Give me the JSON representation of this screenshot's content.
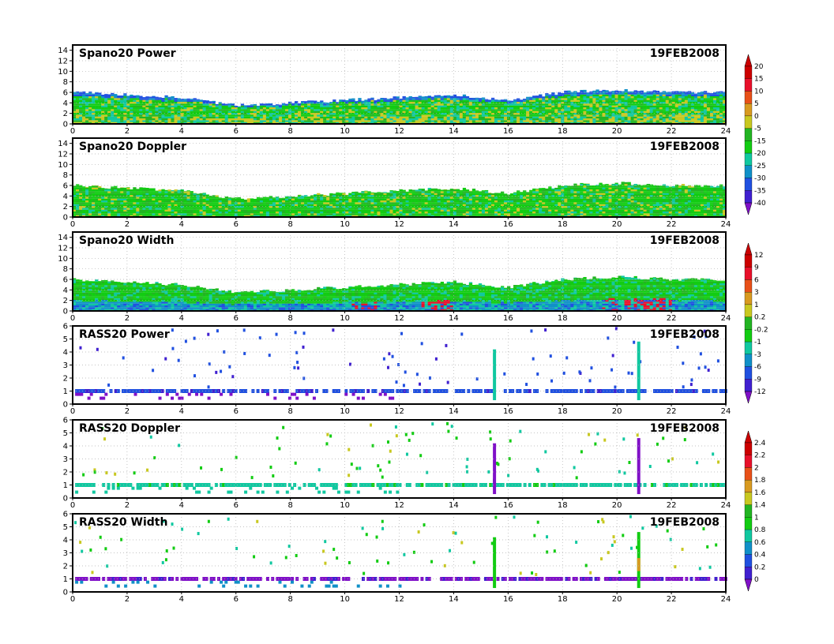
{
  "panels": [
    {
      "title": "Spano20 Power",
      "date": "19FEB2008",
      "kind": "profiler",
      "variable": "power"
    },
    {
      "title": "Spano20 Doppler",
      "date": "19FEB2008",
      "kind": "profiler",
      "variable": "doppler"
    },
    {
      "title": "Spano20 Width",
      "date": "19FEB2008",
      "kind": "profiler",
      "variable": "width"
    },
    {
      "title": "RASS20 Power",
      "date": "19FEB2008",
      "kind": "rass",
      "variable": "power"
    },
    {
      "title": "RASS20 Doppler",
      "date": "19FEB2008",
      "kind": "rass",
      "variable": "doppler"
    },
    {
      "title": "RASS20 Width",
      "date": "19FEB2008",
      "kind": "rass",
      "variable": "width"
    }
  ],
  "colorbars": [
    {
      "labels": [
        "20",
        "15",
        "10",
        "5",
        "0",
        "-5",
        "-15",
        "-20",
        "-25",
        "-30",
        "-35",
        "-40"
      ]
    },
    {
      "labels": [
        "12",
        "9",
        "6",
        "3",
        "1",
        "0.2",
        "-0.2",
        "-1",
        "-3",
        "-6",
        "-9",
        "-12"
      ]
    },
    {
      "labels": [
        "2.4",
        "2.2",
        "2",
        "1.8",
        "1.6",
        "1.4",
        "1",
        "0.8",
        "0.6",
        "0.4",
        "0.2",
        "0"
      ]
    }
  ],
  "colors": {
    "palette": [
      "#cc0000",
      "#e8102a",
      "#e85018",
      "#d89a20",
      "#c8c820",
      "#22b422",
      "#12cc12",
      "#10c8a0",
      "#1090c8",
      "#2050e0",
      "#4020d0",
      "#8010c8"
    ],
    "grid": "#b0b0b0",
    "frame": "#000000"
  },
  "chart_data": [
    {
      "type": "heatmap",
      "title": "Spano20 Power",
      "annotation": "19FEB2008",
      "x": [
        0,
        2,
        4,
        6,
        8,
        10,
        12,
        14,
        16,
        18,
        20,
        22,
        24
      ],
      "xlim": [
        0,
        24
      ],
      "y_ticks": [
        0,
        2,
        4,
        6,
        8,
        10,
        12,
        14
      ],
      "ylim": [
        0,
        15
      ],
      "echo_top": [
        [
          0,
          6
        ],
        [
          2,
          5.5
        ],
        [
          4,
          5
        ],
        [
          6,
          3.5
        ],
        [
          8,
          4
        ],
        [
          10,
          4.5
        ],
        [
          12,
          5
        ],
        [
          14,
          5.5
        ],
        [
          16,
          4.5
        ],
        [
          18,
          6
        ],
        [
          20,
          6.5
        ],
        [
          22,
          6
        ],
        [
          24,
          6
        ]
      ],
      "colorbar_labels": [
        "20",
        "15",
        "10",
        "5",
        "0",
        "-5",
        "-15",
        "-20",
        "-25",
        "-30",
        "-35",
        "-40"
      ]
    },
    {
      "type": "heatmap",
      "title": "Spano20 Doppler",
      "annotation": "19FEB2008",
      "x": [
        0,
        2,
        4,
        6,
        8,
        10,
        12,
        14,
        16,
        18,
        20,
        22,
        24
      ],
      "xlim": [
        0,
        24
      ],
      "y_ticks": [
        0,
        2,
        4,
        6,
        8,
        10,
        12,
        14
      ],
      "ylim": [
        0,
        15
      ],
      "echo_top": [
        [
          0,
          6
        ],
        [
          2,
          5.5
        ],
        [
          4,
          5
        ],
        [
          6,
          3.5
        ],
        [
          8,
          4
        ],
        [
          10,
          4.5
        ],
        [
          12,
          5
        ],
        [
          14,
          5.5
        ],
        [
          16,
          4.5
        ],
        [
          18,
          6
        ],
        [
          20,
          6.5
        ],
        [
          22,
          6
        ],
        [
          24,
          6
        ]
      ],
      "colorbar_labels": [
        "20",
        "15",
        "10",
        "5",
        "0",
        "-5",
        "-15",
        "-20",
        "-25",
        "-30",
        "-35",
        "-40"
      ]
    },
    {
      "type": "heatmap",
      "title": "Spano20 Width",
      "annotation": "19FEB2008",
      "x": [
        0,
        2,
        4,
        6,
        8,
        10,
        12,
        14,
        16,
        18,
        20,
        22,
        24
      ],
      "xlim": [
        0,
        24
      ],
      "y_ticks": [
        0,
        2,
        4,
        6,
        8,
        10,
        12,
        14
      ],
      "ylim": [
        0,
        15
      ],
      "echo_top": [
        [
          0,
          6
        ],
        [
          2,
          5.5
        ],
        [
          4,
          5
        ],
        [
          6,
          3.5
        ],
        [
          8,
          4
        ],
        [
          10,
          4.5
        ],
        [
          12,
          5
        ],
        [
          14,
          5.5
        ],
        [
          16,
          4.5
        ],
        [
          18,
          6
        ],
        [
          20,
          6.5
        ],
        [
          22,
          6
        ],
        [
          24,
          6
        ]
      ],
      "colorbar_labels": [
        "12",
        "9",
        "6",
        "3",
        "1",
        "0.2",
        "-0.2",
        "-1",
        "-3",
        "-6",
        "-9",
        "-12"
      ]
    },
    {
      "type": "scatter",
      "title": "RASS20 Power",
      "annotation": "19FEB2008",
      "xlim": [
        0,
        24
      ],
      "ylim": [
        0,
        6
      ],
      "y_ticks": [
        0,
        1,
        2,
        3,
        4,
        5,
        6
      ],
      "main_band_height": 1.0,
      "band_extent": [
        0,
        24
      ],
      "vertical_spikes": [
        {
          "x": 15.5,
          "ytop": 4.2
        },
        {
          "x": 20.8,
          "ytop": 4.8
        }
      ],
      "colorbar_labels": [
        "12",
        "9",
        "6",
        "3",
        "1",
        "0.2",
        "-0.2",
        "-1",
        "-3",
        "-6",
        "-9",
        "-12"
      ]
    },
    {
      "type": "scatter",
      "title": "RASS20 Doppler",
      "annotation": "19FEB2008",
      "xlim": [
        0,
        24
      ],
      "ylim": [
        0,
        6
      ],
      "y_ticks": [
        0,
        1,
        2,
        3,
        4,
        5,
        6
      ],
      "main_band_height": 1.0,
      "band_extent": [
        0,
        24
      ],
      "vertical_spikes": [
        {
          "x": 15.5,
          "ytop": 4.2
        },
        {
          "x": 20.8,
          "ytop": 4.6
        }
      ],
      "colorbar_labels": [
        "2.4",
        "2.2",
        "2",
        "1.8",
        "1.6",
        "1.4",
        "1",
        "0.8",
        "0.6",
        "0.4",
        "0.2",
        "0"
      ]
    },
    {
      "type": "scatter",
      "title": "RASS20 Width",
      "annotation": "19FEB2008",
      "xlim": [
        0,
        24
      ],
      "ylim": [
        0,
        6
      ],
      "y_ticks": [
        0,
        1,
        2,
        3,
        4,
        5,
        6
      ],
      "main_band_height": 1.0,
      "band_extent": [
        0,
        24
      ],
      "vertical_spikes": [
        {
          "x": 15.5,
          "ytop": 4.2
        },
        {
          "x": 20.8,
          "ytop": 4.6
        }
      ],
      "colorbar_labels": [
        "2.4",
        "2.2",
        "2",
        "1.8",
        "1.6",
        "1.4",
        "1",
        "0.8",
        "0.6",
        "0.4",
        "0.2",
        "0"
      ]
    }
  ]
}
